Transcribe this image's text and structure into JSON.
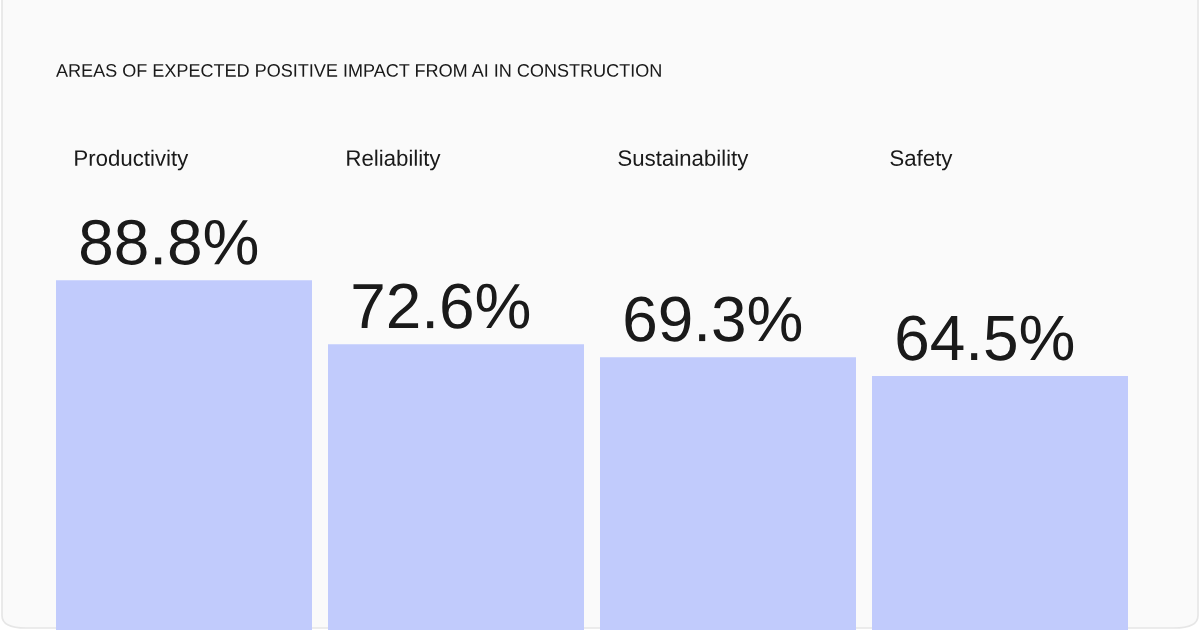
{
  "chart_data": {
    "type": "bar",
    "title": "AREAS OF EXPECTED POSITIVE IMPACT FROM AI IN CONSTRUCTION",
    "categories": [
      "Productivity",
      "Reliability",
      "Sustainability",
      "Safety"
    ],
    "values": [
      88.8,
      72.6,
      69.3,
      64.5
    ],
    "value_labels": [
      "88.8%",
      "72.6%",
      "69.3%",
      "64.5%"
    ],
    "color": "#c1cbfc"
  }
}
